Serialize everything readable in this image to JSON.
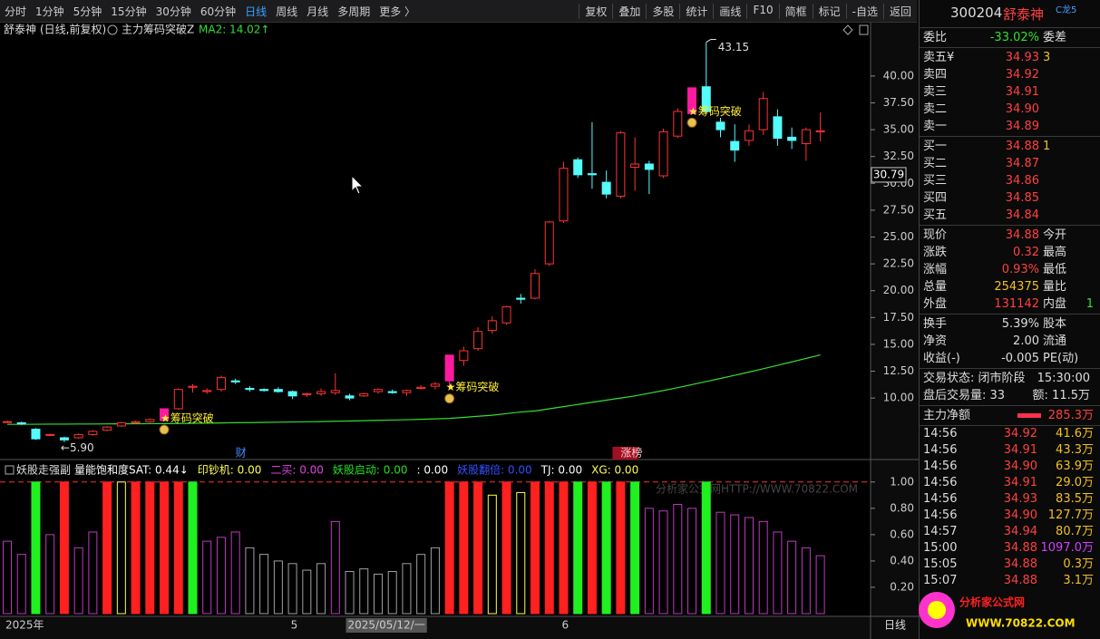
{
  "toolbar": {
    "periods": [
      "分时",
      "1分钟",
      "5分钟",
      "15分钟",
      "30分钟",
      "60分钟",
      "日线",
      "周线",
      "月线",
      "多周期",
      "更多 〉"
    ],
    "active": 6,
    "tools": [
      "复权",
      "叠加",
      "多股",
      "统计",
      "画线",
      "F10",
      "简框",
      "标记",
      "-自选",
      "返回"
    ]
  },
  "chart_header": {
    "name": "舒泰神",
    "period": "(日线,前复权)",
    "indicator": "主力筹码突破Z",
    "ma_label": "MA2: 14.02↑"
  },
  "chart_data": [
    {
      "type": "candlestick",
      "open": [
        7.8,
        7.7,
        7.1,
        6.6,
        6.3,
        6.3,
        6.6,
        7.0,
        7.4,
        7.7,
        7.8,
        7.9,
        9.0,
        11.0,
        10.6,
        10.8,
        11.6,
        10.9,
        10.8,
        10.8,
        10.6,
        10.3,
        10.4,
        10.5,
        10.2,
        10.2,
        10.6,
        10.6,
        10.5,
        10.9,
        11.1,
        11.6,
        13.5,
        14.6,
        16.3,
        17.0,
        19.3,
        19.3,
        22.5,
        26.5,
        32.2,
        30.9,
        30.1,
        28.8,
        31.5,
        31.8,
        30.7,
        34.4,
        36.5,
        39.0,
        35.7,
        33.9,
        34.0,
        35.0,
        36.2,
        34.3,
        33.7,
        34.8
      ],
      "high": [
        7.9,
        7.8,
        7.2,
        6.7,
        6.4,
        6.7,
        7.0,
        7.4,
        7.8,
        7.9,
        8.1,
        9.0,
        10.9,
        11.3,
        10.9,
        12.1,
        11.8,
        11.1,
        10.9,
        11.0,
        10.7,
        10.5,
        10.9,
        12.3,
        10.4,
        10.5,
        10.9,
        10.8,
        10.8,
        11.2,
        11.5,
        14.0,
        14.8,
        16.6,
        17.6,
        18.6,
        19.7,
        22.0,
        26.5,
        32.0,
        32.4,
        35.7,
        31.2,
        34.9,
        34.3,
        32.1,
        35.1,
        37.0,
        38.9,
        43.15,
        36.1,
        35.5,
        35.5,
        38.5,
        36.9,
        35.2,
        35.2,
        36.6
      ],
      "low": [
        7.7,
        7.5,
        6.1,
        6.5,
        5.9,
        6.2,
        6.5,
        6.9,
        7.3,
        7.6,
        7.7,
        7.9,
        8.9,
        10.5,
        10.4,
        10.6,
        11.3,
        10.6,
        10.6,
        10.5,
        9.9,
        10.1,
        10.2,
        10.3,
        9.8,
        10.1,
        10.4,
        10.4,
        10.2,
        10.8,
        10.8,
        10.8,
        13.0,
        14.4,
        16.0,
        16.8,
        18.8,
        19.2,
        22.3,
        26.3,
        30.5,
        29.5,
        28.6,
        28.6,
        29.3,
        29.0,
        30.5,
        34.2,
        36.5,
        36.5,
        34.3,
        32.0,
        33.5,
        34.5,
        33.5,
        33.2,
        32.1,
        33.9
      ],
      "close": [
        7.8,
        7.6,
        6.2,
        6.6,
        6.1,
        6.6,
        6.9,
        7.3,
        7.7,
        7.8,
        8.0,
        9.0,
        10.8,
        11.1,
        10.7,
        11.9,
        11.5,
        10.8,
        10.7,
        10.6,
        10.2,
        10.4,
        10.6,
        10.7,
        10.0,
        10.4,
        10.8,
        10.5,
        10.7,
        11.0,
        11.3,
        14.0,
        14.4,
        16.2,
        17.2,
        18.5,
        19.2,
        21.6,
        26.4,
        31.4,
        30.8,
        30.8,
        29.0,
        34.7,
        31.8,
        31.3,
        34.8,
        36.7,
        38.9,
        36.7,
        35.0,
        33.1,
        34.9,
        37.9,
        34.2,
        34.0,
        35.0,
        34.9
      ],
      "up_color": "#ff3232",
      "down_color": "#54fcfc",
      "highlight_color": "#ff1aa0",
      "highlight": [
        11,
        31,
        48
      ],
      "ma": {
        "color": "#33dd33",
        "values": [
          7.55,
          7.55,
          7.56,
          7.57,
          7.57,
          7.58,
          7.58,
          7.59,
          7.6,
          7.6,
          7.61,
          7.62,
          7.63,
          7.65,
          7.66,
          7.68,
          7.7,
          7.71,
          7.73,
          7.75,
          7.77,
          7.79,
          7.81,
          7.84,
          7.86,
          7.89,
          7.92,
          7.95,
          7.98,
          8.02,
          8.06,
          8.1,
          8.2,
          8.3,
          8.4,
          8.55,
          8.7,
          8.8,
          9.0,
          9.2,
          9.4,
          9.6,
          9.8,
          10.0,
          10.2,
          10.45,
          10.7,
          10.97,
          11.25,
          11.54,
          11.83,
          12.12,
          12.42,
          12.73,
          13.05,
          13.37,
          13.69,
          14.02
        ]
      },
      "ylim": [
        4.44,
        44.97
      ],
      "yticks": [
        {
          "value": 10,
          "label": "10.00"
        },
        {
          "value": 12.5,
          "label": "12.50"
        },
        {
          "value": 15,
          "label": "15.00"
        },
        {
          "value": 17.5,
          "label": "17.50"
        },
        {
          "value": 20,
          "label": "20.00"
        },
        {
          "value": 22.5,
          "label": "22.50"
        },
        {
          "value": 25,
          "label": "25.00"
        },
        {
          "value": 27.5,
          "label": "27.50"
        },
        {
          "value": 30,
          "label": "30.00"
        },
        {
          "value": 32.5,
          "label": "32.50"
        },
        {
          "value": 35,
          "label": "35.00"
        },
        {
          "value": 37.5,
          "label": "37.50"
        },
        {
          "value": 40,
          "label": "40.00"
        }
      ],
      "signals": [
        {
          "index": 11,
          "label": "★筹码突破"
        },
        {
          "index": 31,
          "label": "★筹码突破"
        },
        {
          "index": 48,
          "label": "★筹码突破"
        }
      ],
      "extremes": [
        {
          "index": 4,
          "value": 5.9,
          "label": "←5.90"
        },
        {
          "index": 49,
          "value": 43.15,
          "label": "43.15"
        }
      ],
      "cursor_price": {
        "value": 30.79,
        "label": "30.79"
      },
      "events": [
        {
          "index": 16,
          "label": "财"
        },
        {
          "index": 43,
          "label": "涨榜"
        }
      ]
    },
    {
      "type": "bar",
      "title": "妖股走强副",
      "legend": [
        {
          "label": "量能饱和度SAT: 0.44↓",
          "color": "#ffffff"
        },
        {
          "label": "印钞机: 0.00",
          "color": "#ffff50"
        },
        {
          "label": "二买: 0.00",
          "color": "#e040e0"
        },
        {
          "label": "妖股启动: 0.00",
          "color": "#20e020"
        },
        {
          "label": ": 0.00",
          "color": "#ffffff"
        },
        {
          "label": "妖股翻倍: 0.00",
          "color": "#3050ff"
        },
        {
          "label": "TJ: 0.00",
          "color": "#ffffff"
        },
        {
          "label": "XG: 0.00",
          "color": "#ffff50"
        }
      ],
      "values": [
        0.55,
        0.45,
        1.0,
        0.6,
        1.0,
        0.5,
        0.62,
        1.0,
        1.0,
        1.0,
        1.0,
        1.0,
        1.0,
        1.0,
        0.55,
        0.58,
        0.62,
        0.5,
        0.45,
        0.4,
        0.38,
        0.33,
        0.38,
        0.7,
        0.32,
        0.34,
        0.3,
        0.32,
        0.38,
        0.45,
        0.5,
        1.0,
        1.0,
        1.0,
        0.9,
        1.0,
        0.92,
        1.0,
        1.0,
        1.0,
        1.0,
        1.0,
        1.0,
        1.0,
        1.0,
        0.8,
        0.78,
        0.83,
        0.8,
        1.0,
        0.77,
        0.75,
        0.73,
        0.7,
        0.62,
        0.55,
        0.5,
        0.44
      ],
      "colors": [
        "#c038c0",
        "#c038c0",
        "#20f020",
        "#c038c0",
        "#ff2020",
        "#c038c0",
        "#c038c0",
        "#ff2020",
        "#ffff50",
        "#ff2020",
        "#ff2020",
        "#ff2020",
        "#ff2020",
        "#20f020",
        "#c038c0",
        "#c038c0",
        "#c038c0",
        "#a0a0a0",
        "#a0a0a0",
        "#a0a0a0",
        "#a0a0a0",
        "#a0a0a0",
        "#a0a0a0",
        "#c038c0",
        "#a0a0a0",
        "#a0a0a0",
        "#a0a0a0",
        "#a0a0a0",
        "#a0a0a0",
        "#a0a0a0",
        "#a0a0a0",
        "#ff2020",
        "#ff2020",
        "#ff2020",
        "#ffff50",
        "#ff2020",
        "#ffff50",
        "#ff2020",
        "#ff2020",
        "#ff2020",
        "#20f020",
        "#ff2020",
        "#20f020",
        "#ff2020",
        "#20f020",
        "#c038c0",
        "#c038c0",
        "#c038c0",
        "#c038c0",
        "#20f020",
        "#c038c0",
        "#c038c0",
        "#c038c0",
        "#c038c0",
        "#c038c0",
        "#c038c0",
        "#c038c0",
        "#c038c0"
      ],
      "filled_colors": [
        "#ff2020",
        "#20f020"
      ],
      "reference_line": 1.0,
      "reference_color": "#ff3030",
      "ylim": [
        0,
        1.15
      ],
      "yticks": [
        {
          "value": 0.2,
          "label": "0.20"
        },
        {
          "value": 0.4,
          "label": "0.40"
        },
        {
          "value": 0.6,
          "label": "0.60"
        },
        {
          "value": 0.8,
          "label": "0.80"
        },
        {
          "value": 1.0,
          "label": "1.00"
        }
      ]
    }
  ],
  "date_axis": [
    {
      "index": 0,
      "label": "2025年"
    },
    {
      "index": 20,
      "label": "5"
    },
    {
      "index": 24,
      "label": "2025/05/12/一"
    },
    {
      "index": 39,
      "label": "6"
    }
  ],
  "period_label": "日线",
  "watermark": {
    "text": "分析家公式网HTTP://WWW.70822.COM",
    "logo_title": "分析家公式网",
    "logo_url": "WWW.70822.COM"
  },
  "quote": {
    "code": "300204",
    "name": "舒泰神",
    "tag": "C龙5",
    "weibi": [
      "委比",
      "-33.02%",
      "委差"
    ],
    "asks": [
      [
        "卖五¥",
        "34.93",
        "3"
      ],
      [
        "卖四",
        "34.92"
      ],
      [
        "卖三",
        "34.91"
      ],
      [
        "卖二",
        "34.90"
      ],
      [
        "卖一",
        "34.89"
      ]
    ],
    "bids": [
      [
        "买一",
        "34.88",
        "1"
      ],
      [
        "买二",
        "34.87"
      ],
      [
        "买三",
        "34.86"
      ],
      [
        "买四",
        "34.85"
      ],
      [
        "买五",
        "34.84"
      ]
    ],
    "stats": [
      [
        "现价",
        "34.88",
        "今开"
      ],
      [
        "涨跌",
        "0.32",
        "最高"
      ],
      [
        "涨幅",
        "0.93%",
        "最低"
      ],
      [
        "总量",
        "254375",
        "量比"
      ],
      [
        "外盘",
        "131142",
        "内盘",
        "1"
      ]
    ],
    "stats2": [
      [
        "换手",
        "5.39%",
        "股本"
      ],
      [
        "净资",
        "2.00",
        "流通"
      ],
      [
        "收益(-)",
        "-0.005",
        "PE(动)"
      ]
    ],
    "status": [
      [
        "交易状态: 闭市阶段",
        "15:30:00"
      ],
      [
        "盘后交易量: 33",
        "额: 11.5万"
      ]
    ],
    "main_net": [
      "主力净额",
      "285.3万"
    ],
    "ticks": [
      [
        "14:56",
        "34.92",
        "41.6万"
      ],
      [
        "14:56",
        "34.91",
        "43.3万"
      ],
      [
        "14:56",
        "34.90",
        "63.9万"
      ],
      [
        "14:56",
        "34.91",
        "29.0万"
      ],
      [
        "14:56",
        "34.93",
        "83.5万"
      ],
      [
        "14:56",
        "34.90",
        "127.7万"
      ],
      [
        "14:57",
        "34.94",
        "80.7万"
      ],
      [
        "15:00",
        "34.88",
        "1097.0万"
      ],
      [
        "15:05",
        "34.88",
        "0.3万"
      ],
      [
        "15:07",
        "34.88",
        "3.1万"
      ]
    ]
  }
}
